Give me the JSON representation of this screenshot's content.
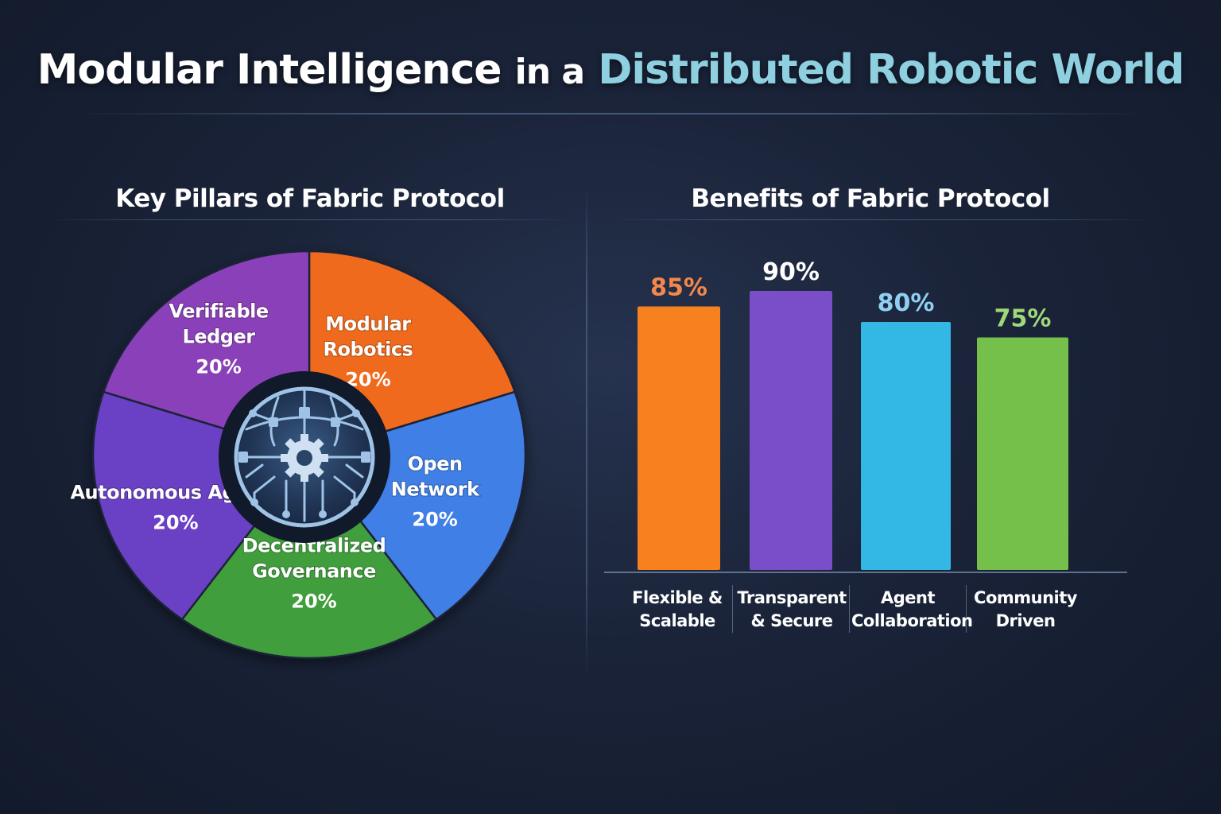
{
  "title": {
    "part1": "Modular Intelligence",
    "part2": "in a",
    "part3": "Distributed Robotic World"
  },
  "colors": {
    "title_accent": "#8ed0e0",
    "background": "#1a2338"
  },
  "chart_data": [
    {
      "type": "pie",
      "title": "Key Pillars of Fabric Protocol",
      "center_icon": "circuit-globe-gear-icon",
      "slices": [
        {
          "label": "Modular Robotics",
          "value": 20,
          "display": "20%",
          "color": "#ef6a1f"
        },
        {
          "label": "Open Network",
          "value": 20,
          "display": "20%",
          "color": "#3f7fe6"
        },
        {
          "label": "Decentralized Governance",
          "value": 20,
          "display": "20%",
          "color": "#3f9e3c"
        },
        {
          "label": "Autonomous Agents",
          "value": 20,
          "display": "20%",
          "color": "#6a3fc4"
        },
        {
          "label": "Verifiable Ledger",
          "value": 20,
          "display": "20%",
          "color": "#8a3fb8"
        }
      ]
    },
    {
      "type": "bar",
      "title": "Benefits of Fabric Protocol",
      "categories": [
        "Flexible & Scalable",
        "Transparent & Secure",
        "Agent Collaboration",
        "Community Driven"
      ],
      "values": [
        85,
        90,
        80,
        75
      ],
      "value_labels": [
        "85%",
        "90%",
        "80%",
        "75%"
      ],
      "bar_colors": [
        "#f7811e",
        "#7b4ec9",
        "#33b8e6",
        "#74c04a"
      ],
      "value_label_colors": [
        "#f4874a",
        "#ffffff",
        "#8fd0f2",
        "#9fd87a"
      ],
      "ylim": [
        0,
        100
      ],
      "grid": false
    }
  ]
}
